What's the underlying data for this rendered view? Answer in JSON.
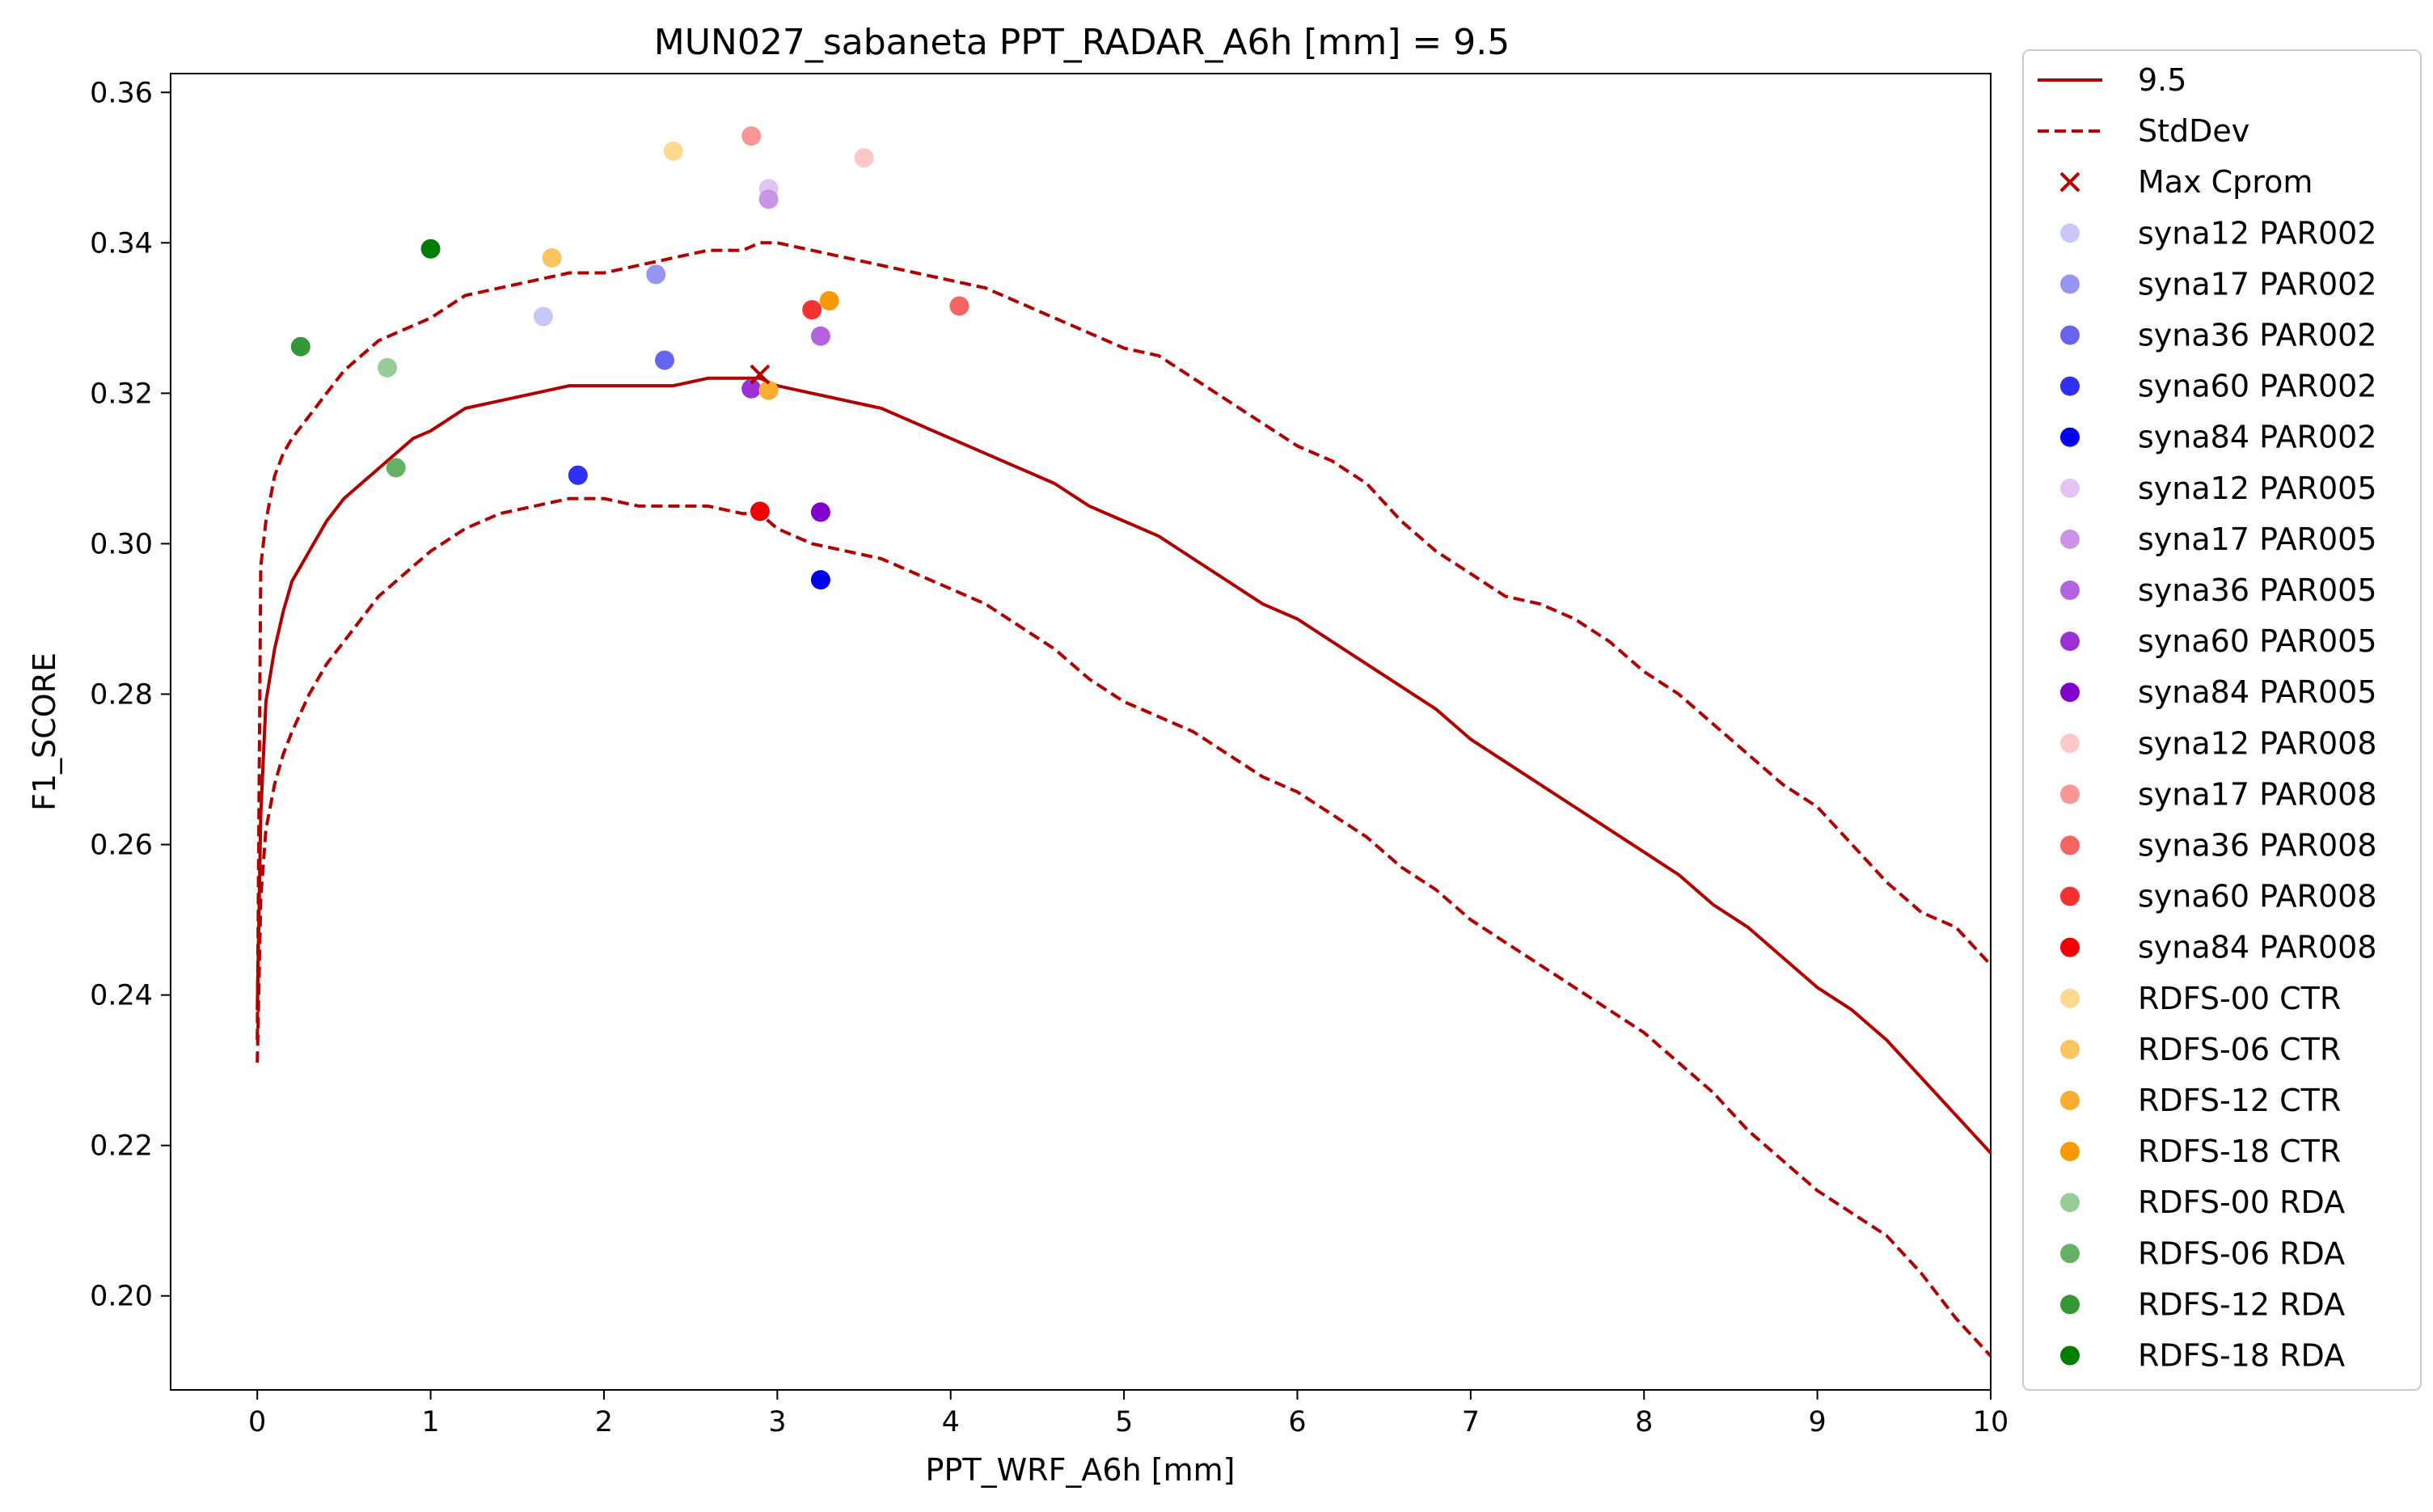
{
  "chart_data": {
    "type": "line",
    "title": "MUN027_sabaneta    PPT_RADAR_A6h [mm] = 9.5",
    "xlabel": "PPT_WRF_A6h [mm]",
    "ylabel": "F1_SCORE",
    "xlim": [
      -0.5,
      10
    ],
    "ylim": [
      0.1875,
      0.3625
    ],
    "xticks": [
      0,
      1,
      2,
      3,
      4,
      5,
      6,
      7,
      8,
      9,
      10
    ],
    "xtick_labels": [
      "0",
      "1",
      "2",
      "3",
      "4",
      "5",
      "6",
      "7",
      "8",
      "9",
      "10"
    ],
    "yticks": [
      0.2,
      0.22,
      0.24,
      0.26,
      0.28,
      0.3,
      0.32,
      0.34,
      0.36
    ],
    "ytick_labels": [
      "0.20",
      "0.22",
      "0.24",
      "0.26",
      "0.28",
      "0.30",
      "0.32",
      "0.34",
      "0.36"
    ],
    "grid": false,
    "legend_position": "outside-right",
    "line_color": "#b00000",
    "series": [
      {
        "name": "9.5",
        "style": "solid",
        "x": [
          0,
          0.02,
          0.05,
          0.1,
          0.15,
          0.2,
          0.3,
          0.4,
          0.5,
          0.6,
          0.7,
          0.8,
          0.9,
          1.0,
          1.2,
          1.4,
          1.6,
          1.8,
          2.0,
          2.2,
          2.4,
          2.6,
          2.8,
          2.9,
          3.0,
          3.2,
          3.4,
          3.6,
          3.8,
          4.0,
          4.2,
          4.4,
          4.6,
          4.8,
          5.0,
          5.2,
          5.4,
          5.6,
          5.8,
          6.0,
          6.2,
          6.4,
          6.6,
          6.8,
          7.0,
          7.2,
          7.4,
          7.6,
          7.8,
          8.0,
          8.2,
          8.4,
          8.6,
          8.8,
          9.0,
          9.2,
          9.4,
          9.6,
          9.8,
          10.0
        ],
        "y": [
          0.238,
          0.264,
          0.279,
          0.286,
          0.291,
          0.295,
          0.299,
          0.303,
          0.306,
          0.308,
          0.31,
          0.312,
          0.314,
          0.315,
          0.318,
          0.319,
          0.32,
          0.321,
          0.321,
          0.321,
          0.321,
          0.322,
          0.322,
          0.322,
          0.321,
          0.32,
          0.319,
          0.318,
          0.316,
          0.314,
          0.312,
          0.31,
          0.308,
          0.305,
          0.303,
          0.301,
          0.298,
          0.295,
          0.292,
          0.29,
          0.287,
          0.284,
          0.281,
          0.278,
          0.274,
          0.271,
          0.268,
          0.265,
          0.262,
          0.259,
          0.256,
          0.252,
          0.249,
          0.245,
          0.241,
          0.238,
          0.234,
          0.229,
          0.224,
          0.219
        ]
      },
      {
        "name": "StdDev",
        "style": "dashed",
        "x": [
          0,
          0.02,
          0.05,
          0.1,
          0.15,
          0.2,
          0.3,
          0.4,
          0.5,
          0.6,
          0.7,
          0.8,
          0.9,
          1.0,
          1.2,
          1.4,
          1.6,
          1.8,
          2.0,
          2.2,
          2.4,
          2.6,
          2.8,
          2.9,
          3.0,
          3.2,
          3.4,
          3.6,
          3.8,
          4.0,
          4.2,
          4.4,
          4.6,
          4.8,
          5.0,
          5.2,
          5.4,
          5.6,
          5.8,
          6.0,
          6.2,
          6.4,
          6.6,
          6.8,
          7.0,
          7.2,
          7.4,
          7.6,
          7.8,
          8.0,
          8.2,
          8.4,
          8.6,
          8.8,
          9.0,
          9.2,
          9.4,
          9.6,
          9.8,
          10.0
        ],
        "y": [
          0.234,
          0.297,
          0.303,
          0.309,
          0.312,
          0.314,
          0.317,
          0.32,
          0.323,
          0.325,
          0.327,
          0.328,
          0.329,
          0.33,
          0.333,
          0.334,
          0.335,
          0.336,
          0.336,
          0.337,
          0.338,
          0.339,
          0.339,
          0.34,
          0.34,
          0.339,
          0.338,
          0.337,
          0.336,
          0.335,
          0.334,
          0.332,
          0.33,
          0.328,
          0.326,
          0.325,
          0.322,
          0.319,
          0.316,
          0.313,
          0.311,
          0.308,
          0.303,
          0.299,
          0.296,
          0.293,
          0.292,
          0.29,
          0.287,
          0.283,
          0.28,
          0.276,
          0.272,
          0.268,
          0.265,
          0.26,
          0.255,
          0.251,
          0.249,
          0.244
        ]
      },
      {
        "name": "",
        "style": "dashed",
        "x": [
          0,
          0.02,
          0.05,
          0.1,
          0.15,
          0.2,
          0.3,
          0.4,
          0.5,
          0.6,
          0.7,
          0.8,
          0.9,
          1.0,
          1.2,
          1.4,
          1.6,
          1.8,
          2.0,
          2.2,
          2.4,
          2.6,
          2.8,
          2.9,
          3.0,
          3.2,
          3.4,
          3.6,
          3.8,
          4.0,
          4.2,
          4.4,
          4.6,
          4.8,
          5.0,
          5.2,
          5.4,
          5.6,
          5.8,
          6.0,
          6.2,
          6.4,
          6.6,
          6.8,
          7.0,
          7.2,
          7.4,
          7.6,
          7.8,
          8.0,
          8.2,
          8.4,
          8.6,
          8.8,
          9.0,
          9.2,
          9.4,
          9.6,
          9.8,
          10.0
        ],
        "y": [
          0.231,
          0.253,
          0.262,
          0.268,
          0.272,
          0.275,
          0.28,
          0.284,
          0.287,
          0.29,
          0.293,
          0.295,
          0.297,
          0.299,
          0.302,
          0.304,
          0.305,
          0.306,
          0.306,
          0.305,
          0.305,
          0.305,
          0.304,
          0.304,
          0.302,
          0.3,
          0.299,
          0.298,
          0.296,
          0.294,
          0.292,
          0.289,
          0.286,
          0.282,
          0.279,
          0.277,
          0.275,
          0.272,
          0.269,
          0.267,
          0.264,
          0.261,
          0.257,
          0.254,
          0.25,
          0.247,
          0.244,
          0.241,
          0.238,
          0.235,
          0.231,
          0.227,
          0.222,
          0.218,
          0.214,
          0.211,
          0.208,
          0.203,
          0.197,
          0.192
        ]
      }
    ],
    "max_point": {
      "name": "Max Cprom",
      "x": 2.9,
      "y": 0.3225,
      "color": "#b00000"
    },
    "scatter": [
      {
        "name": "syna12 PAR002",
        "x": 1.65,
        "y": 0.3302,
        "color": "#c8c8f8"
      },
      {
        "name": "syna17 PAR002",
        "x": 2.3,
        "y": 0.3358,
        "color": "#9696f0"
      },
      {
        "name": "syna36 PAR002",
        "x": 2.35,
        "y": 0.3244,
        "color": "#6464ef"
      },
      {
        "name": "syna60 PAR002",
        "x": 1.85,
        "y": 0.3091,
        "color": "#3030f4"
      },
      {
        "name": "syna84 PAR002",
        "x": 3.25,
        "y": 0.2952,
        "color": "#0000f0"
      },
      {
        "name": "syna12 PAR005",
        "x": 2.95,
        "y": 0.3472,
        "color": "#e2c4f4"
      },
      {
        "name": "syna17 PAR005",
        "x": 2.95,
        "y": 0.3458,
        "color": "#cc94e8"
      },
      {
        "name": "syna36 PAR005",
        "x": 3.25,
        "y": 0.3276,
        "color": "#b462e0"
      },
      {
        "name": "syna60 PAR005",
        "x": 2.85,
        "y": 0.3206,
        "color": "#9a30d6"
      },
      {
        "name": "syna84 PAR005",
        "x": 3.25,
        "y": 0.3042,
        "color": "#8200cc"
      },
      {
        "name": "syna12 PAR008",
        "x": 3.5,
        "y": 0.3513,
        "color": "#fcc8c8"
      },
      {
        "name": "syna17 PAR008",
        "x": 2.85,
        "y": 0.3542,
        "color": "#fa9696"
      },
      {
        "name": "syna36 PAR008",
        "x": 4.05,
        "y": 0.3316,
        "color": "#f66464"
      },
      {
        "name": "syna60 PAR008",
        "x": 3.2,
        "y": 0.3311,
        "color": "#f43232"
      },
      {
        "name": "syna84 PAR008",
        "x": 2.9,
        "y": 0.3043,
        "color": "#f00000"
      },
      {
        "name": "RDFS-00 CTR",
        "x": 2.4,
        "y": 0.3522,
        "color": "#fcd890"
      },
      {
        "name": "RDFS-06 CTR",
        "x": 1.7,
        "y": 0.338,
        "color": "#fac460"
      },
      {
        "name": "RDFS-12 CTR",
        "x": 2.95,
        "y": 0.3204,
        "color": "#faae30"
      },
      {
        "name": "RDFS-18 CTR",
        "x": 3.3,
        "y": 0.3323,
        "color": "#fa9a00"
      },
      {
        "name": "RDFS-00 RDA",
        "x": 0.75,
        "y": 0.3234,
        "color": "#98cc98"
      },
      {
        "name": "RDFS-06 RDA",
        "x": 0.8,
        "y": 0.3101,
        "color": "#66b066"
      },
      {
        "name": "RDFS-12 RDA",
        "x": 0.25,
        "y": 0.3262,
        "color": "#349834"
      },
      {
        "name": "RDFS-18 RDA",
        "x": 1.0,
        "y": 0.3392,
        "color": "#007e00"
      }
    ]
  }
}
